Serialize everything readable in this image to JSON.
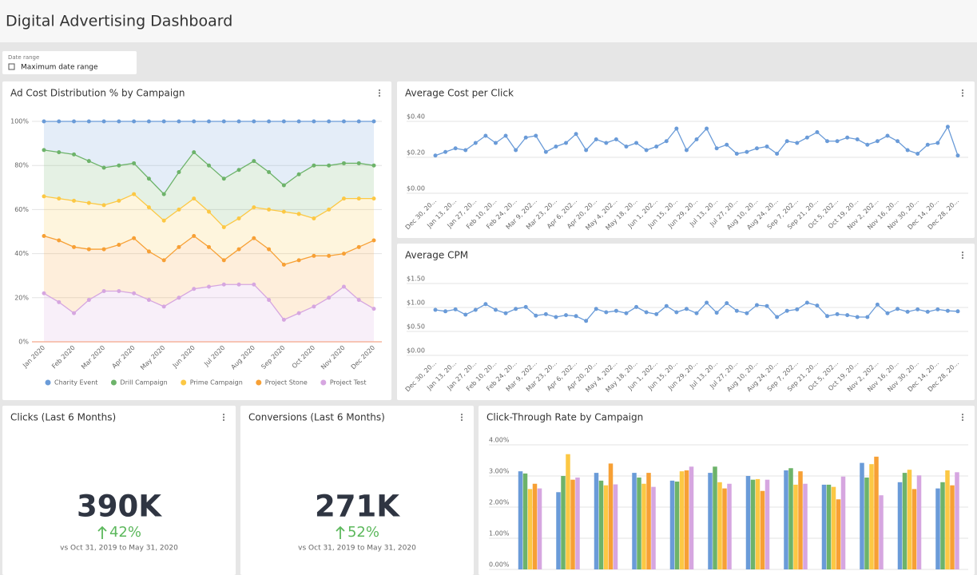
{
  "header": {
    "title": "Digital Advertising Dashboard"
  },
  "filter": {
    "label": "Date range",
    "value": "Maximum date range"
  },
  "chart_data": [
    {
      "type": "area",
      "stacked": true,
      "title": "Ad Cost Distribution % by Campaign",
      "categories": [
        "Jan 2020",
        null,
        "Feb 2020",
        null,
        "Mar 2020",
        null,
        "Apr 2020",
        null,
        "May 2020",
        null,
        "Jun 2020",
        null,
        "Jul 2020",
        null,
        "Aug 2020",
        null,
        "Sep 2020",
        null,
        "Oct 2020",
        null,
        "Nov 2020",
        null,
        "Dec 2020"
      ],
      "series": [
        {
          "name": "Charity Event",
          "color": "#6a9bd8",
          "values": [
            13,
            14,
            15,
            18,
            21,
            20,
            19,
            26,
            33,
            23,
            14,
            20,
            26,
            22,
            18,
            23,
            29,
            24,
            20,
            20,
            19,
            19,
            20
          ]
        },
        {
          "name": "Drill Campaign",
          "color": "#6db36a",
          "values": [
            21,
            21,
            21,
            19,
            17,
            16,
            14,
            13,
            12,
            17,
            21,
            21,
            22,
            22,
            21,
            17,
            12,
            18,
            24,
            20,
            16,
            16,
            15
          ]
        },
        {
          "name": "Prime Campaign",
          "color": "#fcc844",
          "values": [
            18,
            19,
            21,
            21,
            20,
            20,
            20,
            20,
            18,
            17,
            17,
            16,
            15,
            14,
            14,
            18,
            24,
            21,
            17,
            21,
            25,
            22,
            19
          ]
        },
        {
          "name": "Project Stone",
          "color": "#f7a035",
          "values": [
            26,
            28,
            30,
            23,
            19,
            21,
            25,
            22,
            21,
            23,
            24,
            18,
            11,
            16,
            21,
            23,
            25,
            24,
            23,
            19,
            15,
            24,
            31
          ]
        },
        {
          "name": "Project Test",
          "color": "#d6a6e0",
          "values": [
            22,
            18,
            13,
            19,
            23,
            23,
            22,
            19,
            16,
            20,
            24,
            25,
            26,
            26,
            26,
            19,
            10,
            13,
            16,
            20,
            25,
            19,
            15
          ]
        }
      ],
      "ylim": [
        0,
        100
      ],
      "yticks": [
        {
          "value": 0,
          "label": "0%"
        },
        {
          "value": 20,
          "label": "20%"
        },
        {
          "value": 40,
          "label": "40%"
        },
        {
          "value": 60,
          "label": "60%"
        },
        {
          "value": 80,
          "label": "80%"
        },
        {
          "value": 100,
          "label": "100%"
        }
      ],
      "grid": true,
      "legend": "bottom"
    },
    {
      "type": "line",
      "title": "Average Cost per Click",
      "color": "#6a9bd8",
      "categories": [
        "Dec 30, 20...",
        null,
        "Jan 13, 20...",
        null,
        "Jan 27, 20...",
        null,
        "Feb 10, 20...",
        null,
        "Feb 24, 20...",
        null,
        "Mar 9, 202...",
        null,
        "Mar 23, 20...",
        null,
        "Apr 6, 202...",
        null,
        "Apr 20, 20...",
        null,
        "May 4, 202...",
        null,
        "May 18, 20...",
        null,
        "Jun 1, 202...",
        null,
        "Jun 15, 20...",
        null,
        "Jun 29, 20...",
        null,
        "Jul 13, 20...",
        null,
        "Jul 27, 20...",
        null,
        "Aug 10, 20...",
        null,
        "Aug 24, 20...",
        null,
        "Sep 7, 202...",
        null,
        "Sep 21, 20...",
        null,
        "Oct 5, 202...",
        null,
        "Oct 19, 20...",
        null,
        "Nov 2, 202...",
        null,
        "Nov 16, 20...",
        null,
        "Nov 30, 20...",
        null,
        "Dec 14, 20...",
        null,
        "Dec 28, 20..."
      ],
      "values": [
        0.21,
        0.23,
        0.25,
        0.24,
        0.28,
        0.32,
        0.28,
        0.32,
        0.24,
        0.31,
        0.32,
        0.23,
        0.26,
        0.28,
        0.33,
        0.24,
        0.3,
        0.28,
        0.3,
        0.26,
        0.28,
        0.24,
        0.26,
        0.29,
        0.36,
        0.24,
        0.3,
        0.36,
        0.25,
        0.27,
        0.22,
        0.23,
        0.25,
        0.26,
        0.22,
        0.29,
        0.28,
        0.31,
        0.34,
        0.29,
        0.29,
        0.31,
        0.3,
        0.27,
        0.29,
        0.32,
        0.29,
        0.24,
        0.22,
        0.27,
        0.28,
        0.37,
        0.21
      ],
      "ylim": [
        0,
        0.4
      ],
      "yticks": [
        {
          "value": 0,
          "label": "$0.00"
        },
        {
          "value": 0.2,
          "label": "$0.20"
        },
        {
          "value": 0.4,
          "label": "$0.40"
        }
      ],
      "grid": true
    },
    {
      "type": "line",
      "title": "Average CPM",
      "color": "#6a9bd8",
      "categories": [
        "Dec 30, 20...",
        null,
        "Jan 13, 20...",
        null,
        "Jan 27, 20...",
        null,
        "Feb 10, 20...",
        null,
        "Feb 24, 20...",
        null,
        "Mar 9, 202...",
        null,
        "Mar 23, 20...",
        null,
        "Apr 6, 202...",
        null,
        "Apr 20, 20...",
        null,
        "May 4, 202...",
        null,
        "May 18, 20...",
        null,
        "Jun 1, 202...",
        null,
        "Jun 15, 20...",
        null,
        "Jun 29, 20...",
        null,
        "Jul 13, 20...",
        null,
        "Jul 27, 20...",
        null,
        "Aug 10, 20...",
        null,
        "Aug 24, 20...",
        null,
        "Sep 7, 202...",
        null,
        "Sep 21, 20...",
        null,
        "Oct 5, 202...",
        null,
        "Oct 19, 20...",
        null,
        "Nov 2, 202...",
        null,
        "Nov 16, 20...",
        null,
        "Nov 30, 20...",
        null,
        "Dec 14, 20...",
        null,
        "Dec 28, 20..."
      ],
      "values": [
        0.95,
        0.92,
        0.96,
        0.85,
        0.95,
        1.07,
        0.95,
        0.88,
        0.97,
        1.01,
        0.83,
        0.86,
        0.8,
        0.84,
        0.82,
        0.72,
        0.97,
        0.9,
        0.93,
        0.88,
        1.01,
        0.9,
        0.86,
        1.03,
        0.9,
        0.97,
        0.88,
        1.1,
        0.89,
        1.09,
        0.93,
        0.88,
        1.05,
        1.03,
        0.8,
        0.93,
        0.96,
        1.1,
        1.04,
        0.82,
        0.86,
        0.84,
        0.8,
        0.8,
        1.06,
        0.88,
        0.97,
        0.91,
        0.96,
        0.91,
        0.96,
        0.93,
        0.92
      ],
      "ylim": [
        0,
        1.5
      ],
      "yticks": [
        {
          "value": 0,
          "label": "$0.00"
        },
        {
          "value": 0.5,
          "label": "$0.50"
        },
        {
          "value": 1,
          "label": "$1.00"
        },
        {
          "value": 1.5,
          "label": "$1.50"
        }
      ],
      "grid": true
    },
    {
      "type": "bar",
      "title": "Click-Through Rate by Campaign",
      "categories": [
        null,
        null,
        null,
        null,
        null,
        null,
        null,
        null,
        null,
        null,
        null,
        null
      ],
      "series": [
        {
          "name": "Charity Event",
          "color": "#6a9bd8",
          "values": [
            3.15,
            2.48,
            3.1,
            3.1,
            2.85,
            3.1,
            3.0,
            3.18,
            2.72,
            3.42,
            2.8,
            2.6
          ]
        },
        {
          "name": "Drill Campaign",
          "color": "#6db36a",
          "values": [
            3.08,
            3.0,
            2.85,
            2.95,
            2.82,
            3.3,
            2.88,
            3.25,
            2.72,
            2.95,
            3.1,
            2.8
          ]
        },
        {
          "name": "Prime Campaign",
          "color": "#fcc844",
          "values": [
            2.58,
            3.7,
            2.7,
            2.75,
            3.15,
            2.8,
            2.9,
            2.72,
            2.65,
            3.38,
            3.2,
            3.18
          ]
        },
        {
          "name": "Project Stone",
          "color": "#f7a035",
          "values": [
            2.75,
            2.88,
            3.4,
            3.1,
            3.18,
            2.6,
            2.52,
            3.15,
            2.25,
            3.62,
            2.58,
            2.7
          ]
        },
        {
          "name": "Project Test",
          "color": "#d6a6e0",
          "values": [
            2.6,
            2.95,
            2.73,
            2.65,
            3.3,
            2.75,
            2.88,
            2.75,
            2.98,
            2.38,
            3.02,
            3.12
          ]
        }
      ],
      "ylim": [
        0,
        4
      ],
      "yticks": [
        {
          "value": 0,
          "label": "0.00%"
        },
        {
          "value": 1,
          "label": "1.00%"
        },
        {
          "value": 2,
          "label": "2.00%"
        },
        {
          "value": 3,
          "label": "3.00%"
        },
        {
          "value": 4,
          "label": "4.00%"
        }
      ],
      "grid": true
    }
  ],
  "kpis": [
    {
      "title": "Clicks (Last 6 Months)",
      "value": "390K",
      "change": "42%",
      "comparison": "vs Oct 31, 2019 to May 31, 2020"
    },
    {
      "title": "Conversions (Last 6 Months)",
      "value": "271K",
      "change": "52%",
      "comparison": "vs Oct 31, 2019 to May 31, 2020"
    }
  ]
}
